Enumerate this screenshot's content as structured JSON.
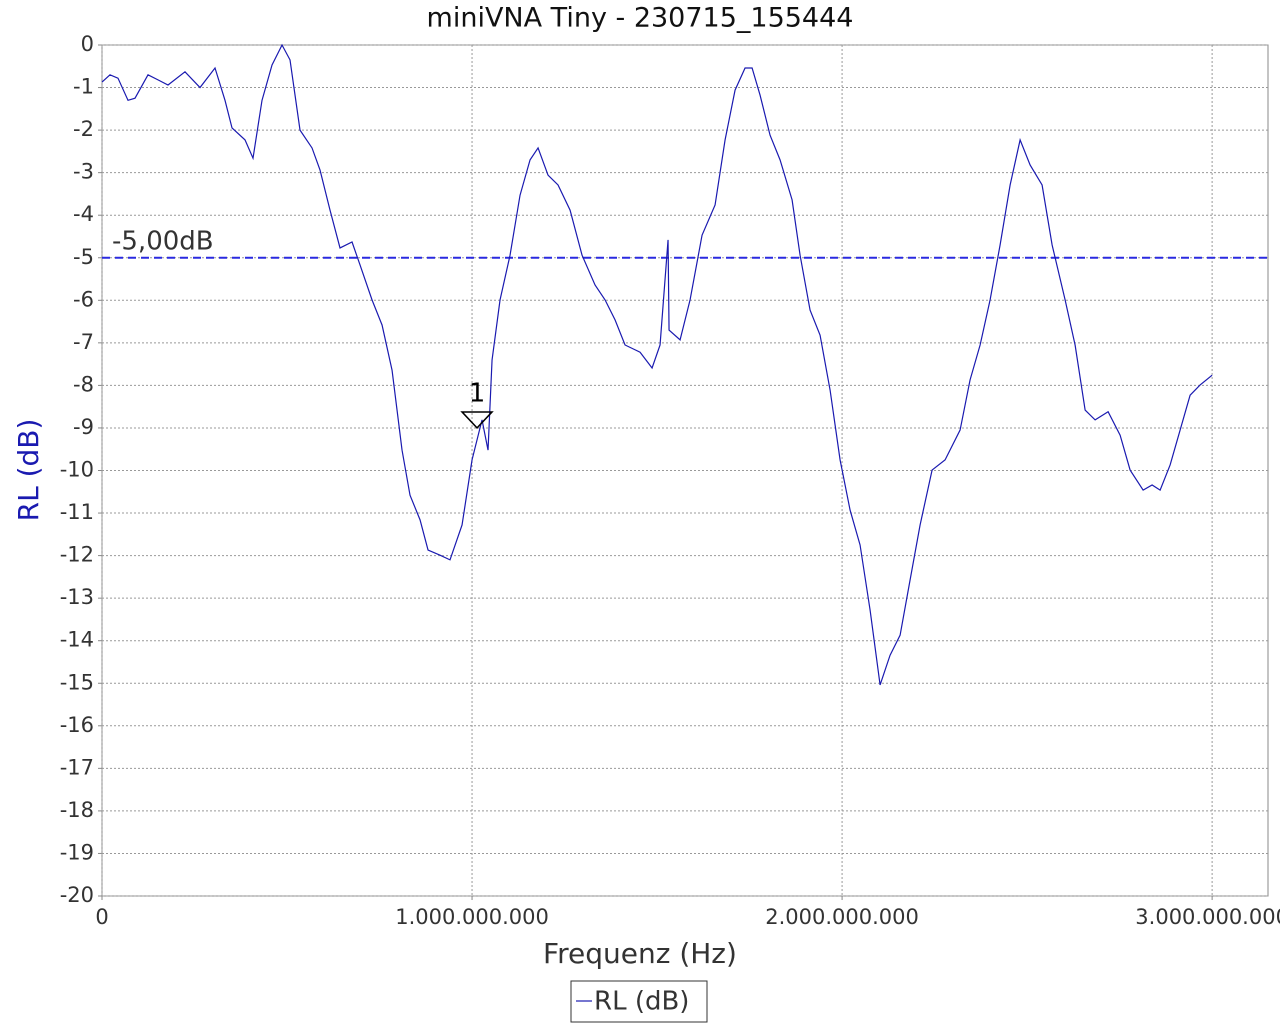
{
  "chart_data": {
    "type": "line",
    "title": "miniVNA Tiny - 230715_155444",
    "x_label": "Frequenz (Hz)",
    "y_label": "RL (dB)",
    "xlim": [
      0,
      3151000000
    ],
    "ylim": [
      -20,
      0
    ],
    "xticks": [
      0,
      {
        "value": 1000000000,
        "label": "1.000.000.000"
      },
      {
        "value": 2000000000,
        "label": "2.000.000.000"
      },
      {
        "value": 3000000000,
        "label": "3.000.000.000"
      }
    ],
    "yticks": [
      0,
      -1,
      -2,
      -3,
      -4,
      -5,
      -6,
      -7,
      -8,
      -9,
      -10,
      -11,
      -12,
      -13,
      -14,
      -15,
      -16,
      -17,
      -18,
      -19,
      -20
    ],
    "grid": true,
    "x": [
      0,
      21600000,
      43200000,
      70300000,
      89200000,
      124300000,
      151400000,
      178400000,
      224300000,
      264900000,
      305400000,
      332400000,
      351400000,
      386500000,
      408100000,
      432400000,
      459500000,
      486500000,
      508100000,
      535100000,
      567600000,
      589200000,
      616200000,
      643200000,
      675700000,
      697300000,
      729700000,
      756800000,
      783800000,
      810800000,
      832400000,
      859500000,
      881100000,
      913500000,
      940500000,
      973000000,
      1000000000,
      1027000000,
      1043200000,
      1054100000,
      1075700000,
      1102700000,
      1129700000,
      1156800000,
      1178400000,
      1205400000,
      1232400000,
      1264900000,
      1297300000,
      1332400000,
      1359500000,
      1386500000,
      1413500000,
      1454100000,
      1486500000,
      1508100000,
      1529700000,
      1532400000,
      1562200000,
      1589200000,
      1621600000,
      1656800000,
      1683800000,
      1710800000,
      1737800000,
      1756800000,
      1778400000,
      1805400000,
      1832400000,
      1864900000,
      1886500000,
      1913500000,
      1940500000,
      1967600000,
      1994600000,
      2021600000,
      2048600000,
      2075700000,
      2102700000,
      2129700000,
      2156800000,
      2183800000,
      2210800000,
      2243200000,
      2278400000,
      2318900000,
      2345900000,
      2373000000,
      2400000000,
      2427000000,
      2454100000,
      2481100000,
      2508100000,
      2540500000,
      2567600000,
      2602700000,
      2629700000,
      2656800000,
      2683800000,
      2718900000,
      2751400000,
      2778400000,
      2813500000,
      2837800000,
      2859500000,
      2886500000,
      2913500000,
      2940500000,
      2967600000,
      3000000000
    ],
    "series": [
      {
        "name": "RL (dB)",
        "color": "#1a1ab0",
        "values": [
          -0.87,
          -0.7,
          -0.78,
          -1.3,
          -1.25,
          -0.7,
          -0.82,
          -0.94,
          -0.63,
          -1.0,
          -0.54,
          -1.3,
          -1.95,
          -2.23,
          -2.66,
          -1.3,
          -0.47,
          0,
          -0.35,
          -2.0,
          -2.42,
          -2.94,
          -3.88,
          -4.77,
          -4.63,
          -5.17,
          -5.99,
          -6.58,
          -7.64,
          -9.52,
          -10.58,
          -11.16,
          -11.87,
          -11.99,
          -12.1,
          -11.28,
          -9.75,
          -8.81,
          -9.52,
          -7.4,
          -5.99,
          -4.94,
          -3.53,
          -2.7,
          -2.42,
          -3.06,
          -3.29,
          -3.88,
          -4.94,
          -5.64,
          -5.99,
          -6.46,
          -7.05,
          -7.22,
          -7.59,
          -7.05,
          -4.58,
          -6.7,
          -6.93,
          -5.99,
          -4.47,
          -3.76,
          -2.23,
          -1.06,
          -0.54,
          -0.54,
          -1.18,
          -2.12,
          -2.7,
          -3.64,
          -4.94,
          -6.23,
          -6.82,
          -8.11,
          -9.75,
          -10.93,
          -11.75,
          -13.28,
          -15.04,
          -14.34,
          -13.87,
          -12.57,
          -11.28,
          -9.99,
          -9.75,
          -9.05,
          -7.87,
          -7.05,
          -5.99,
          -4.7,
          -3.29,
          -2.23,
          -2.82,
          -3.29,
          -4.7,
          -5.99,
          -7.05,
          -8.58,
          -8.81,
          -8.62,
          -9.17,
          -9.99,
          -10.46,
          -10.34,
          -10.46,
          -9.87,
          -9.05,
          -8.23,
          -7.99,
          -7.76
        ]
      }
    ],
    "reference_line": {
      "value": -5,
      "label": "-5,00dB",
      "color": "#2a2ae0"
    },
    "markers": [
      {
        "label": "1",
        "x": 1013500000,
        "y": -9.0
      }
    ]
  }
}
